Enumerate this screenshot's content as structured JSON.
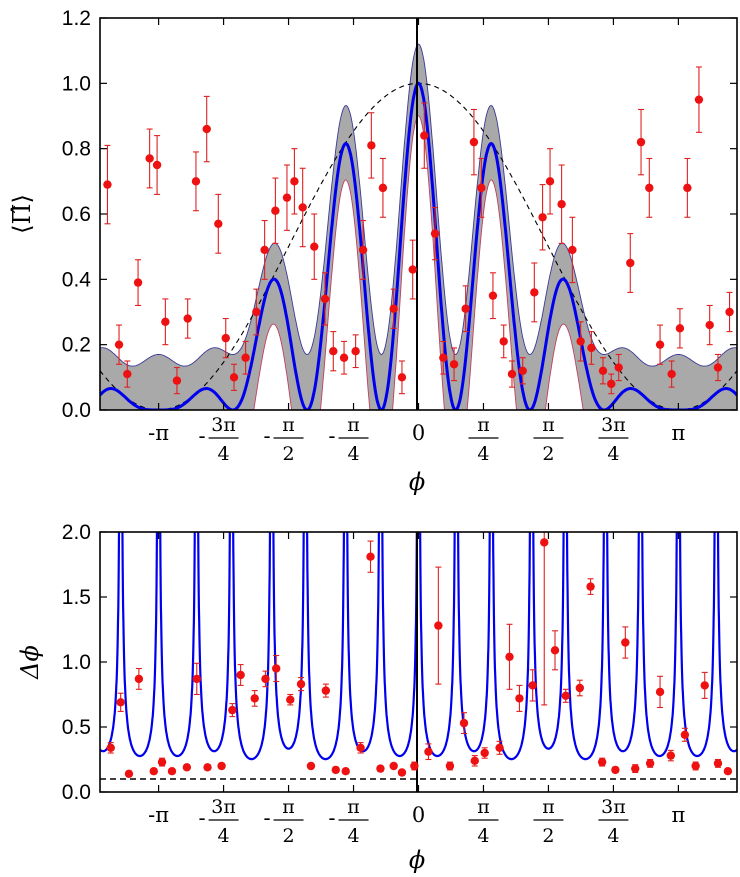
{
  "chart_data": [
    {
      "type": "line",
      "ylabel": "⟨Π̂⟩",
      "xlabel": "ϕ",
      "xlim": [
        -3.85,
        3.85
      ],
      "ylim": [
        0,
        1.2
      ],
      "yticks": [
        "0.0",
        "0.2",
        "0.4",
        "0.6",
        "0.8",
        "1.0",
        "1.2"
      ],
      "xticks": [
        {
          "value": -3.1416,
          "label": "-π"
        },
        {
          "value": -2.3562,
          "label": "-3π/4"
        },
        {
          "value": -1.5708,
          "label": "-π/2"
        },
        {
          "value": -0.7854,
          "label": "-π/4"
        },
        {
          "value": 0,
          "label": "0"
        },
        {
          "value": 0.7854,
          "label": "π/4"
        },
        {
          "value": 1.5708,
          "label": "π/2"
        },
        {
          "value": 2.3562,
          "label": "3π/4"
        },
        {
          "value": 3.1416,
          "label": "π"
        }
      ],
      "series": [
        {
          "kind": "theory",
          "color": "#0000ee",
          "description": "solid"
        },
        {
          "kind": "uncertainty-band",
          "color": "#a8a8a8"
        },
        {
          "kind": "reference",
          "color": "#000000",
          "dashed": true
        },
        {
          "kind": "data",
          "color": "#ee1111",
          "x": [
            -3.76,
            -3.62,
            -3.52,
            -3.39,
            -3.25,
            -3.16,
            -3.06,
            -2.92,
            -2.79,
            -2.69,
            -2.56,
            -2.42,
            -2.33,
            -2.23,
            -2.09,
            -1.96,
            -1.86,
            -1.73,
            -1.59,
            -1.5,
            -1.4,
            -1.26,
            -1.13,
            -1.03,
            -0.9,
            -0.76,
            -0.67,
            -0.57,
            -0.43,
            -0.3,
            -0.2,
            -0.07,
            0.07,
            0.2,
            0.3,
            0.43,
            0.57,
            0.67,
            0.76,
            0.9,
            1.03,
            1.13,
            1.26,
            1.4,
            1.5,
            1.59,
            1.73,
            1.86,
            1.96,
            2.09,
            2.23,
            2.33,
            2.42,
            2.56,
            2.69,
            2.79,
            2.92,
            3.06,
            3.16,
            3.25,
            3.39,
            3.52,
            3.62,
            3.76
          ],
          "y": [
            0.69,
            0.2,
            0.11,
            0.39,
            0.77,
            0.75,
            0.27,
            0.09,
            0.28,
            0.7,
            0.86,
            0.57,
            0.22,
            0.1,
            0.16,
            0.3,
            0.49,
            0.61,
            0.65,
            0.7,
            0.62,
            0.5,
            0.34,
            0.18,
            0.16,
            0.18,
            0.49,
            0.81,
            0.68,
            0.31,
            0.1,
            0.43,
            0.84,
            0.54,
            0.16,
            0.14,
            0.31,
            0.82,
            0.68,
            0.35,
            0.21,
            0.11,
            0.12,
            0.36,
            0.59,
            0.7,
            0.63,
            0.49,
            0.21,
            0.19,
            0.12,
            0.08,
            0.13,
            0.45,
            0.82,
            0.68,
            0.2,
            0.11,
            0.25,
            0.68,
            0.95,
            0.26,
            0.13,
            0.3
          ],
          "err": [
            0.12,
            0.06,
            0.04,
            0.07,
            0.09,
            0.09,
            0.07,
            0.04,
            0.06,
            0.09,
            0.1,
            0.09,
            0.06,
            0.04,
            0.05,
            0.07,
            0.09,
            0.1,
            0.1,
            0.1,
            0.12,
            0.1,
            0.08,
            0.06,
            0.05,
            0.05,
            0.09,
            0.1,
            0.09,
            0.06,
            0.05,
            0.09,
            0.1,
            0.08,
            0.05,
            0.05,
            0.07,
            0.1,
            0.09,
            0.07,
            0.05,
            0.04,
            0.04,
            0.09,
            0.1,
            0.1,
            0.12,
            0.1,
            0.06,
            0.05,
            0.04,
            0.03,
            0.04,
            0.09,
            0.1,
            0.09,
            0.06,
            0.04,
            0.06,
            0.09,
            0.1,
            0.06,
            0.04,
            0.06
          ]
        }
      ]
    },
    {
      "type": "line",
      "ylabel": "Δϕ",
      "xlabel": "ϕ",
      "xlim": [
        -3.85,
        3.85
      ],
      "ylim": [
        0,
        2
      ],
      "yticks": [
        "0.0",
        "0.5",
        "1.0",
        "1.5",
        "2.0"
      ],
      "xticks": [
        {
          "value": -3.1416,
          "label": "-π"
        },
        {
          "value": -2.3562,
          "label": "-3π/4"
        },
        {
          "value": -1.5708,
          "label": "-π/2"
        },
        {
          "value": -0.7854,
          "label": "-π/4"
        },
        {
          "value": 0,
          "label": "0"
        },
        {
          "value": 0.7854,
          "label": "π/4"
        },
        {
          "value": 1.5708,
          "label": "π/2"
        },
        {
          "value": 2.3562,
          "label": "3π/4"
        },
        {
          "value": 3.1416,
          "label": "π"
        }
      ],
      "series": [
        {
          "kind": "theory",
          "color": "#0000ee",
          "description": "solid"
        },
        {
          "kind": "reference",
          "color": "#000000",
          "dashed": true,
          "y": 0.1
        },
        {
          "kind": "data",
          "color": "#ee1111",
          "x": [
            -3.72,
            -3.6,
            -3.5,
            -3.38,
            -3.2,
            -3.1,
            -2.98,
            -2.8,
            -2.68,
            -2.55,
            -2.38,
            -2.25,
            -2.15,
            -1.98,
            -1.85,
            -1.72,
            -1.55,
            -1.42,
            -1.3,
            -1.12,
            -1.0,
            -0.88,
            -0.7,
            -0.58,
            -0.46,
            -0.3,
            -0.2,
            -0.05,
            0.12,
            0.24,
            0.38,
            0.55,
            0.68,
            0.8,
            0.98,
            1.1,
            1.22,
            1.38,
            1.52,
            1.65,
            1.78,
            1.95,
            2.08,
            2.22,
            2.38,
            2.5,
            2.62,
            2.8,
            2.92,
            3.05,
            3.22,
            3.35,
            3.46,
            3.62,
            3.74
          ],
          "y": [
            0.34,
            0.69,
            0.14,
            0.87,
            0.16,
            0.23,
            0.16,
            0.19,
            0.87,
            0.19,
            0.2,
            0.63,
            0.9,
            0.72,
            0.87,
            0.95,
            0.71,
            0.83,
            0.2,
            0.78,
            0.17,
            0.16,
            0.34,
            1.81,
            0.18,
            0.2,
            0.15,
            0.2,
            0.31,
            1.28,
            0.2,
            0.53,
            0.24,
            0.3,
            0.34,
            1.04,
            0.72,
            0.82,
            1.92,
            1.09,
            0.74,
            0.8,
            1.58,
            0.23,
            0.17,
            1.15,
            0.18,
            0.22,
            0.77,
            0.28,
            0.44,
            0.2,
            0.82,
            0.22,
            0.16
          ],
          "err": [
            0.04,
            0.07,
            0.02,
            0.08,
            0.02,
            0.03,
            0.02,
            0.02,
            0.12,
            0.02,
            0.02,
            0.05,
            0.08,
            0.06,
            0.06,
            0.1,
            0.04,
            0.05,
            0.02,
            0.05,
            0.02,
            0.02,
            0.04,
            0.12,
            0.02,
            0.02,
            0.02,
            0.03,
            0.06,
            0.45,
            0.03,
            0.08,
            0.04,
            0.04,
            0.05,
            0.25,
            0.1,
            0.12,
            1.25,
            0.15,
            0.05,
            0.06,
            0.06,
            0.03,
            0.02,
            0.12,
            0.03,
            0.03,
            0.12,
            0.04,
            0.05,
            0.03,
            0.1,
            0.03,
            0.02
          ]
        }
      ]
    }
  ]
}
